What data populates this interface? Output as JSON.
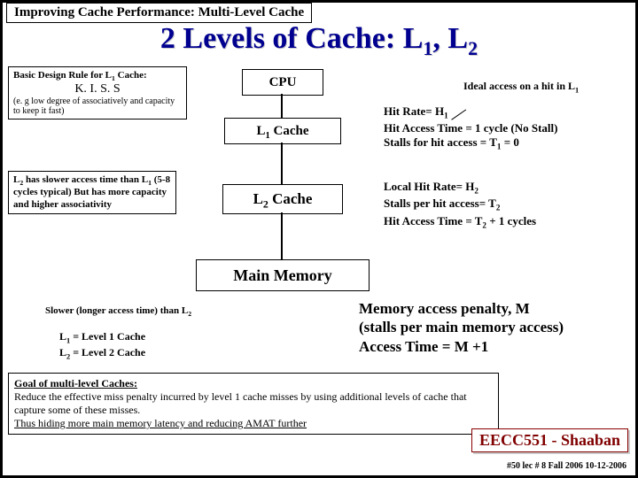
{
  "header": {
    "topic": "Improving Cache Performance: Multi-Level Cache",
    "title_html": "2 Levels of Cache:  L<sub>1</sub>, L<sub>2</sub>"
  },
  "design_rule": {
    "label_html": "Basic Design Rule for L<sub>1</sub> Cache:",
    "kiss": "K. I. S. S",
    "note": "(e. g low degree of associatively and capacity to keep it fast)"
  },
  "blocks": {
    "cpu": "CPU",
    "l1_html": "L<sub>1</sub> Cache",
    "l2_html": "L<sub>2</sub> Cache",
    "mm": "Main Memory"
  },
  "ideal_html": "Ideal access on a hit in L<sub>1</sub>",
  "l1_metrics_html": "Hit Rate= H<sub>1</sub><br>Hit Access Time = 1 cycle (No Stall)<br>Stalls for hit access = T<sub>1</sub> = 0",
  "l2_metrics_html": "Local Hit Rate= H<sub>2</sub><br>Stalls per hit access= T<sub>2</sub><br>Hit Access Time = T<sub>2</sub> + 1 cycles",
  "l2_note_html": "L<sub>2</sub> has slower access time than L<sub>1</sub> (5-8 cycles typical) But has more capacity and higher associativity",
  "mem_penalty_html": "Memory access penalty, M<br>(stalls per main memory access)<br>Access Time = M +1",
  "slower_note_html": "Slower (longer access time) than L<sub>2</sub>",
  "legend_html": "L<sub>1</sub>  =  Level 1 Cache<br>L<sub>2</sub>  =  Level 2 Cache",
  "goal": {
    "title": "Goal of multi-level Caches:",
    "body": "Reduce the effective miss penalty incurred by level 1 cache misses by using additional levels of cache that capture some of these misses.",
    "last": "Thus hiding more main memory latency and reducing AMAT further"
  },
  "course": "EECC551 - Shaaban",
  "footer": "#50  lec # 8   Fall 2006  10-12-2006",
  "colors": {
    "border": "#000000",
    "title": "#000090",
    "course": "#800000",
    "bg": "#ffffff"
  }
}
